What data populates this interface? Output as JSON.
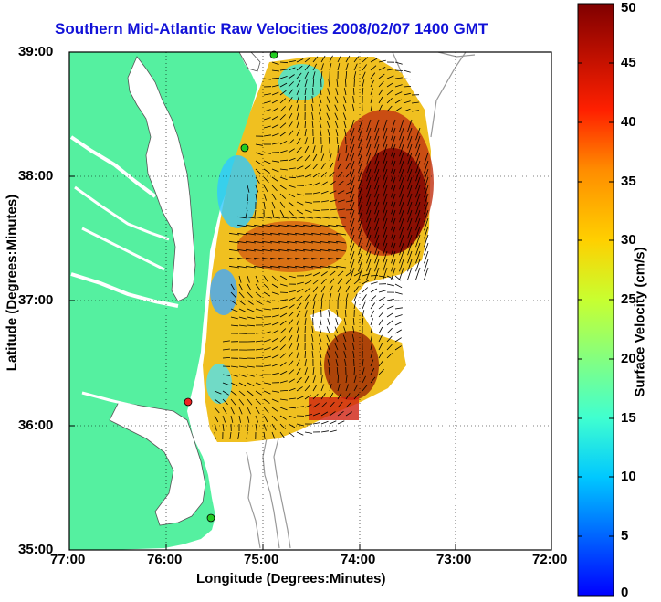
{
  "title": "Southern Mid-Atlantic Raw Velocities 2008/02/07 1400 GMT",
  "axes": {
    "xlabel": "Longitude (Degrees:Minutes)",
    "ylabel": "Latitude (Degrees:Minutes)",
    "xticks": [
      "77:00",
      "76:00",
      "75:00",
      "74:00",
      "73:00",
      "72:00"
    ],
    "yticks": [
      "39:00",
      "38:00",
      "37:00",
      "36:00",
      "35:00"
    ],
    "grid": "dotted"
  },
  "colorbar": {
    "label": "Surface Velocity (cm/s)",
    "ticks": [
      "0",
      "5",
      "10",
      "15",
      "20",
      "25",
      "30",
      "35",
      "40",
      "45",
      "50"
    ],
    "range": [
      0,
      50
    ]
  },
  "colors": {
    "land": "#55f0a0",
    "title": "#1212d8",
    "station_green": "#22cc22",
    "station_red": "#ee2222"
  }
}
